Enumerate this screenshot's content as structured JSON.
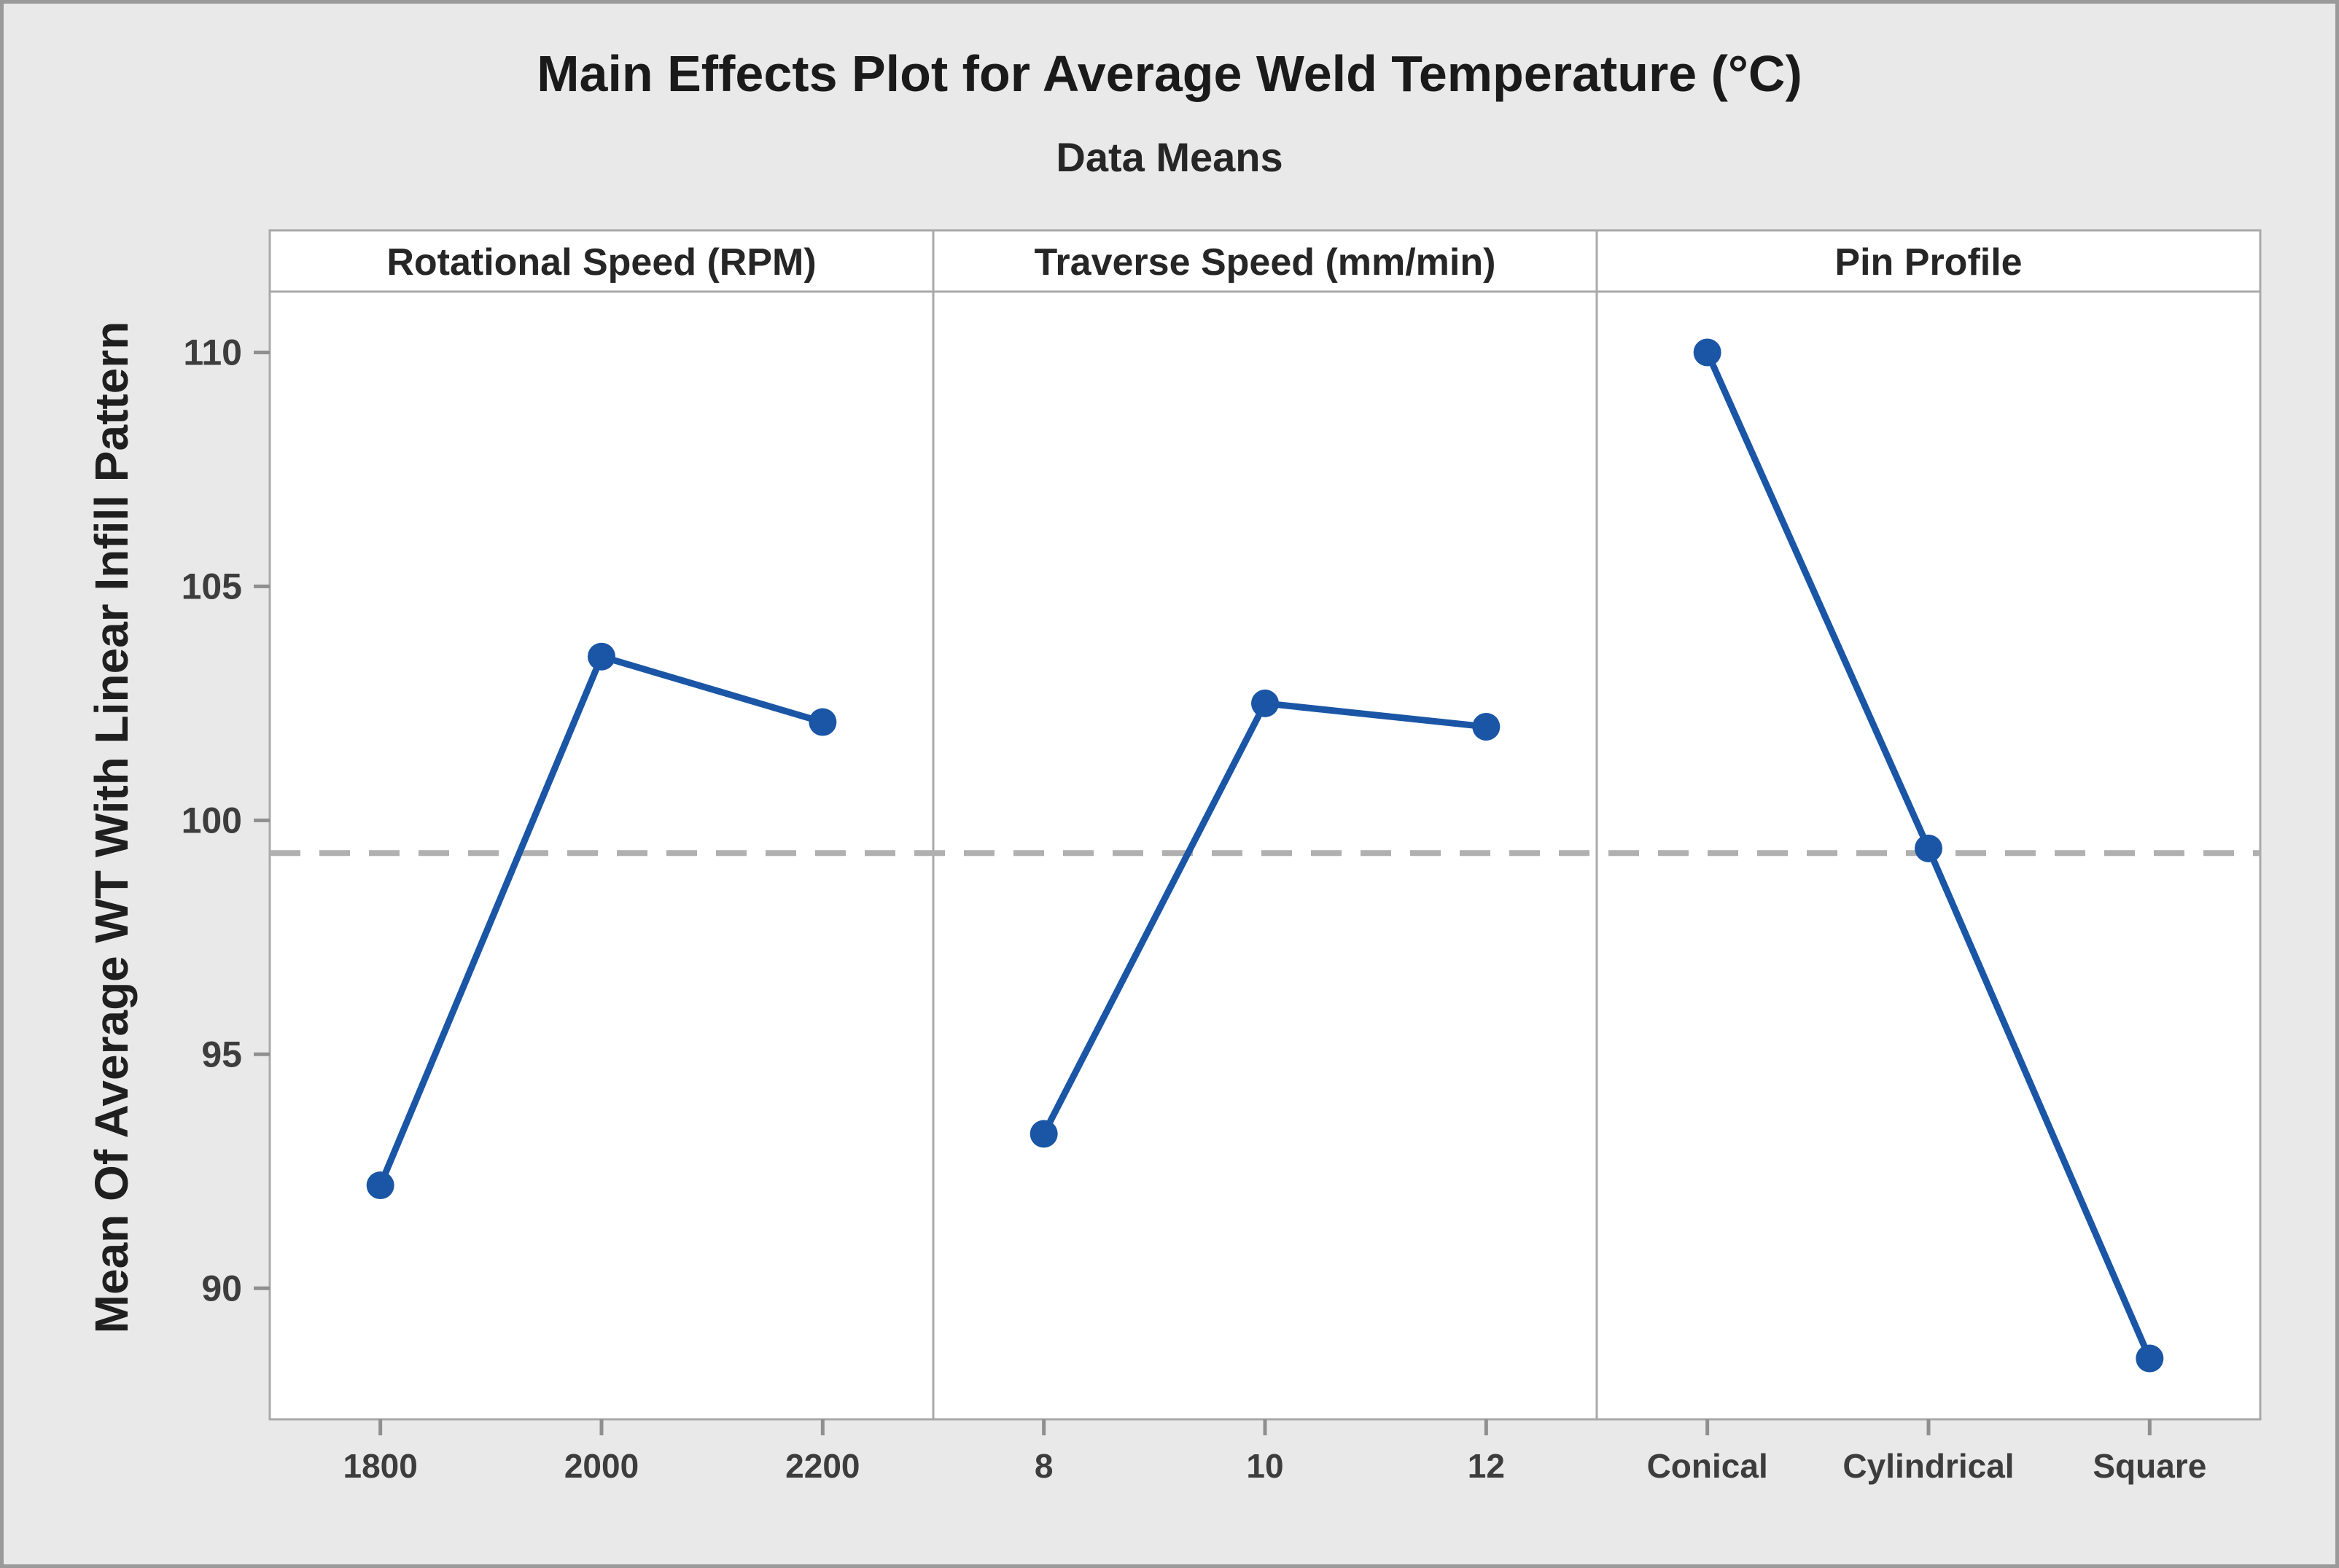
{
  "chart_data": {
    "type": "line",
    "title": "Main Effects Plot for Average Weld Temperature (°C)",
    "subtitle": "Data Means",
    "ylabel": "Mean Of Average WT With Linear Infill Pattern",
    "xlabel": "",
    "ylim": [
      87.2,
      111.3
    ],
    "yticks": [
      90,
      95,
      100,
      105,
      110
    ],
    "grid": false,
    "legend": "none",
    "reference_line_mean": 99.3,
    "panels": [
      {
        "label": "Rotational Speed (RPM)",
        "categories": [
          "1800",
          "2000",
          "2200"
        ],
        "values": [
          92.2,
          103.5,
          102.1
        ]
      },
      {
        "label": "Traverse Speed (mm/min)",
        "categories": [
          "8",
          "10",
          "12"
        ],
        "values": [
          93.3,
          102.5,
          102.0
        ]
      },
      {
        "label": "Pin Profile",
        "categories": [
          "Conical",
          "Cylindrical",
          "Square"
        ],
        "values": [
          110.0,
          99.4,
          88.5
        ]
      }
    ],
    "colors": {
      "series": "#1a56a5",
      "reference_line": "#b0b0b0",
      "panel_border": "#a9a9a9",
      "tick": "#8f8f8f",
      "canvas_bg": "#e9e9e9",
      "panel_bg": "#ffffff",
      "text": "#3d3d3d",
      "header_text": "#262626"
    }
  }
}
